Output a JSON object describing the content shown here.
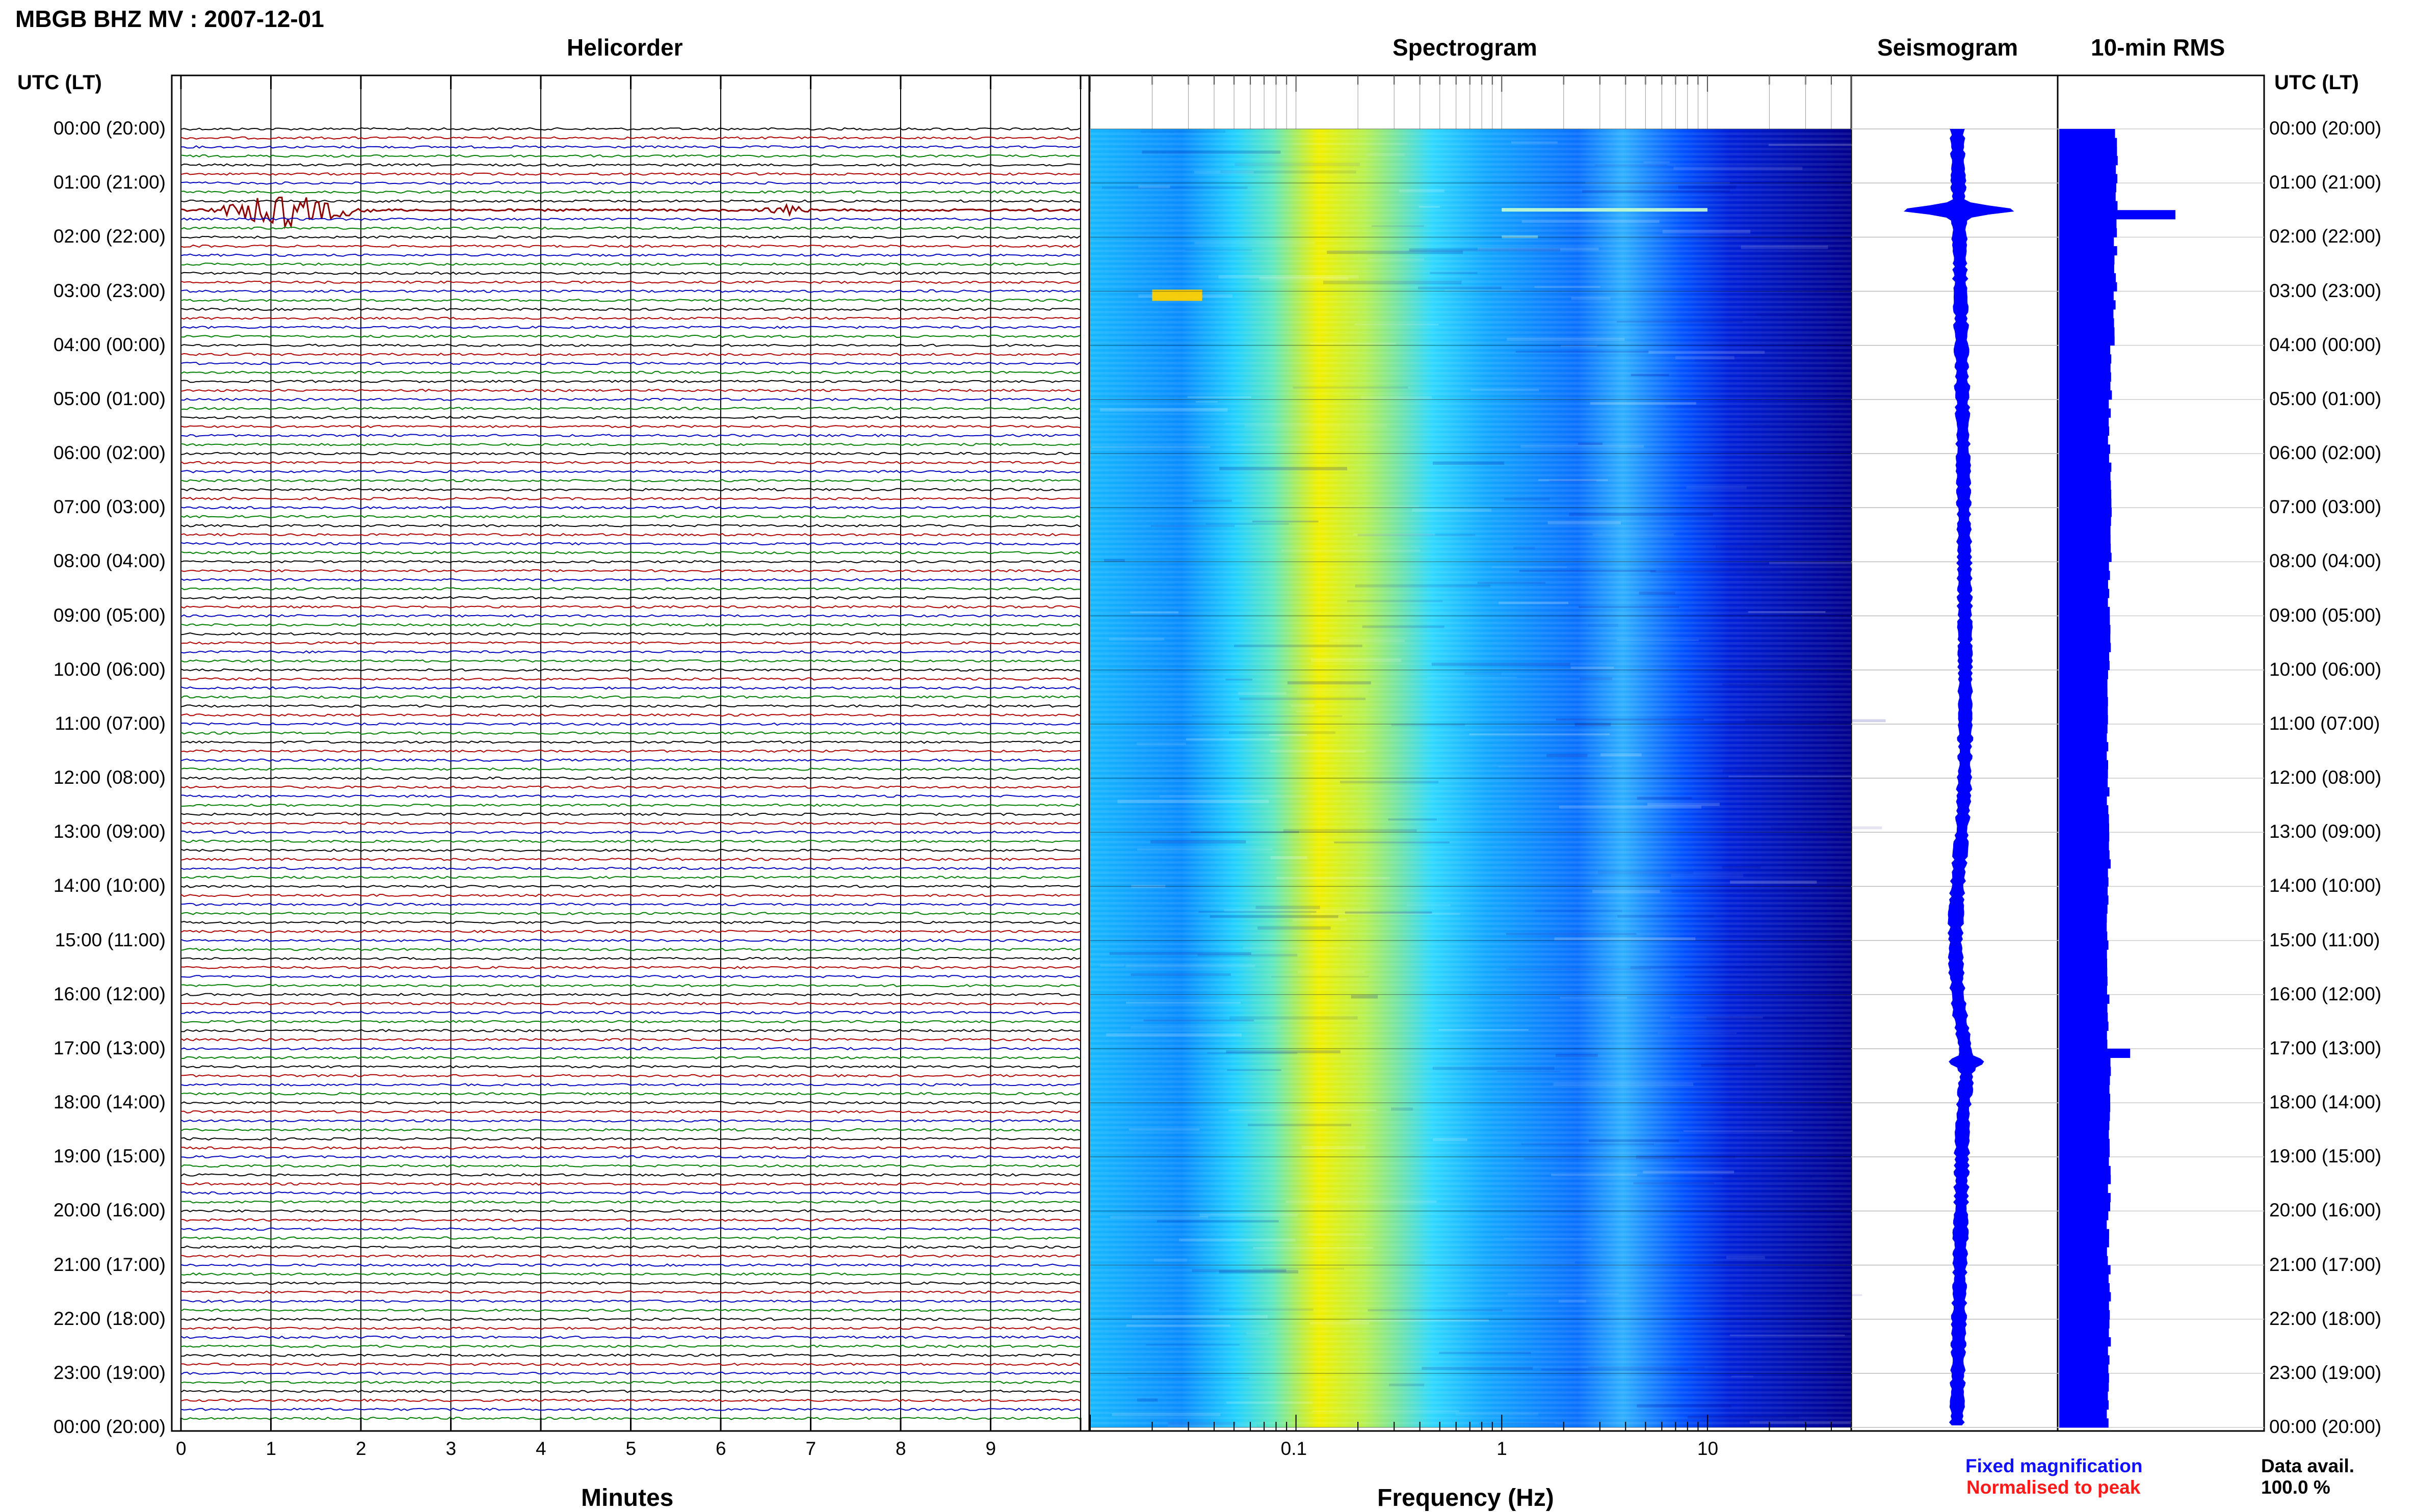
{
  "title": "MBGB BHZ MV : 2007-12-01",
  "panels": {
    "helicorder": "Helicorder",
    "spectrogram": "Spectrogram",
    "seismogram": "Seismogram",
    "rms": "10-min RMS"
  },
  "axis_headers": {
    "left": "UTC (LT)",
    "right": "UTC (LT)"
  },
  "time_labels": [
    "00:00 (20:00)",
    "01:00 (21:00)",
    "02:00 (22:00)",
    "03:00 (23:00)",
    "04:00 (00:00)",
    "05:00 (01:00)",
    "06:00 (02:00)",
    "07:00 (03:00)",
    "08:00 (04:00)",
    "09:00 (05:00)",
    "10:00 (06:00)",
    "11:00 (07:00)",
    "12:00 (08:00)",
    "13:00 (09:00)",
    "14:00 (10:00)",
    "15:00 (11:00)",
    "16:00 (12:00)",
    "17:00 (13:00)",
    "18:00 (14:00)",
    "19:00 (15:00)",
    "20:00 (16:00)",
    "21:00 (17:00)",
    "22:00 (18:00)",
    "23:00 (19:00)",
    "00:00 (20:00)"
  ],
  "minutes_axis": {
    "label": "Minutes",
    "ticks": [
      "0",
      "1",
      "2",
      "3",
      "4",
      "5",
      "6",
      "7",
      "8",
      "9"
    ]
  },
  "frequency_axis": {
    "label": "Frequency (Hz)",
    "ticks": [
      "0.1",
      "1",
      "10"
    ]
  },
  "legend": {
    "fixed": "Fixed magnification",
    "normalised": "Normalised to peak",
    "fixed_color": "#1010ff",
    "normalised_color": "#ff1a1a"
  },
  "data_avail": {
    "label": "Data avail.",
    "value": "100.0 %"
  },
  "colors": {
    "trace_cycle": [
      "#000000",
      "#b00000",
      "#0000c0",
      "#008000"
    ],
    "event_color": "#8b0000",
    "seismogram": "#0000ff",
    "rms_bar": "#0000ff",
    "spectrogram_ramp": [
      "#00008b",
      "#0000ff",
      "#0a70ff",
      "#18c8ff",
      "#40e8e0",
      "#a8f060",
      "#f0f000",
      "#ffc000"
    ]
  },
  "chart_data": [
    {
      "type": "line",
      "name": "helicorder",
      "xlabel": "Minutes",
      "xlim": [
        0,
        10
      ],
      "rows": 144,
      "row_minutes": 10,
      "events": [
        {
          "time_utc": "01:30",
          "minute_start": 0.1,
          "minute_end": 2.2,
          "amplitude": 1.0
        },
        {
          "time_utc": "01:30",
          "minute_start": 6.3,
          "minute_end": 7.1,
          "amplitude": 0.35
        },
        {
          "time_utc": "03:00",
          "minute_start": 8.2,
          "minute_end": 8.5,
          "amplitude": 0.2
        }
      ]
    },
    {
      "type": "heatmap",
      "name": "spectrogram",
      "xlabel": "Frequency (Hz)",
      "xscale": "log",
      "xlim": [
        0.01,
        50
      ],
      "ridge_hz": 0.25,
      "features": [
        {
          "time_utc": "01:30",
          "f_start": 1.0,
          "f_end": 10,
          "kind": "bright-line"
        },
        {
          "time_utc": "02:00",
          "f_start": 1.0,
          "f_end": 1.5,
          "kind": "faint-line"
        },
        {
          "time_utc": "03:05",
          "f_start": 0.02,
          "f_end": 0.035,
          "kind": "long-period-burst"
        }
      ]
    },
    {
      "type": "line",
      "name": "seismogram",
      "events": [
        {
          "time_utc": "01:30",
          "amplitude": 1.0
        },
        {
          "time_utc": "17:15",
          "amplitude": 0.25
        }
      ]
    },
    {
      "type": "bar",
      "name": "10-min RMS",
      "categories": [
        "00:00",
        "01:00",
        "02:00",
        "03:00",
        "04:00",
        "05:00",
        "06:00",
        "07:00",
        "08:00",
        "09:00",
        "10:00",
        "11:00",
        "12:00",
        "13:00",
        "14:00",
        "15:00",
        "16:00",
        "17:00",
        "18:00",
        "19:00",
        "20:00",
        "21:00",
        "22:00",
        "23:00"
      ],
      "values": [
        0.47,
        0.47,
        0.46,
        0.45,
        0.42,
        0.41,
        0.42,
        0.42,
        0.41,
        0.41,
        0.4,
        0.4,
        0.4,
        0.41,
        0.4,
        0.4,
        0.4,
        0.42,
        0.41,
        0.41,
        0.4,
        0.41,
        0.41,
        0.4
      ],
      "peaks": [
        {
          "time_utc": "01:30",
          "value": 0.95
        },
        {
          "time_utc": "17:00",
          "value": 0.58
        }
      ],
      "xlim": [
        0,
        1
      ]
    }
  ]
}
